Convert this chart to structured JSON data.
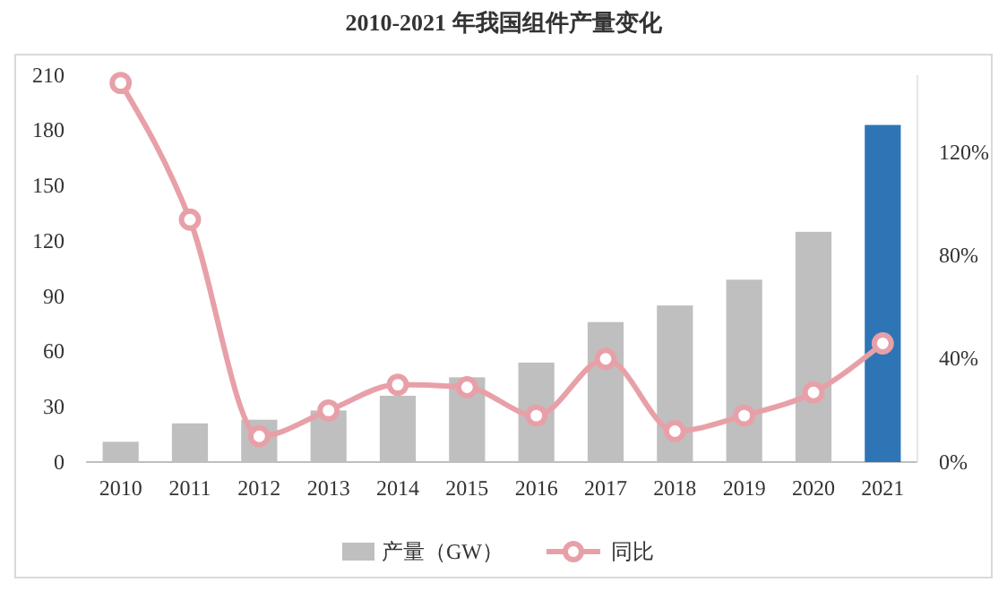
{
  "chart_data": {
    "type": "bar",
    "title": "2010-2021 年我国组件产量变化",
    "categories": [
      "2010",
      "2011",
      "2012",
      "2013",
      "2014",
      "2015",
      "2016",
      "2017",
      "2018",
      "2019",
      "2020",
      "2021"
    ],
    "series": [
      {
        "name": "产量（GW）",
        "color": "#bfbfbf",
        "colors": [
          "#bfbfbf",
          "#bfbfbf",
          "#bfbfbf",
          "#bfbfbf",
          "#bfbfbf",
          "#bfbfbf",
          "#bfbfbf",
          "#bfbfbf",
          "#bfbfbf",
          "#bfbfbf",
          "#bfbfbf",
          "#2e75b6"
        ],
        "values": [
          11,
          21,
          23,
          28,
          36,
          46,
          54,
          76,
          85,
          99,
          125,
          183
        ]
      },
      {
        "name": "同比",
        "type": "line",
        "axis": "y2",
        "color": "#e8a0a8",
        "values": [
          147,
          94,
          10,
          20,
          30,
          29,
          18,
          40,
          12,
          18,
          27,
          46
        ]
      }
    ],
    "ylim": [
      0,
      210
    ],
    "yticks": [
      0,
      30,
      60,
      90,
      120,
      150,
      180,
      210
    ],
    "y2lim": [
      0,
      150
    ],
    "y2ticks": [
      {
        "value": 0,
        "label": "0%"
      },
      {
        "value": 40,
        "label": "40%"
      },
      {
        "value": 80,
        "label": "80%"
      },
      {
        "value": 120,
        "label": "120%"
      }
    ],
    "marker": "circle",
    "legend": "bottom",
    "grid": false
  }
}
